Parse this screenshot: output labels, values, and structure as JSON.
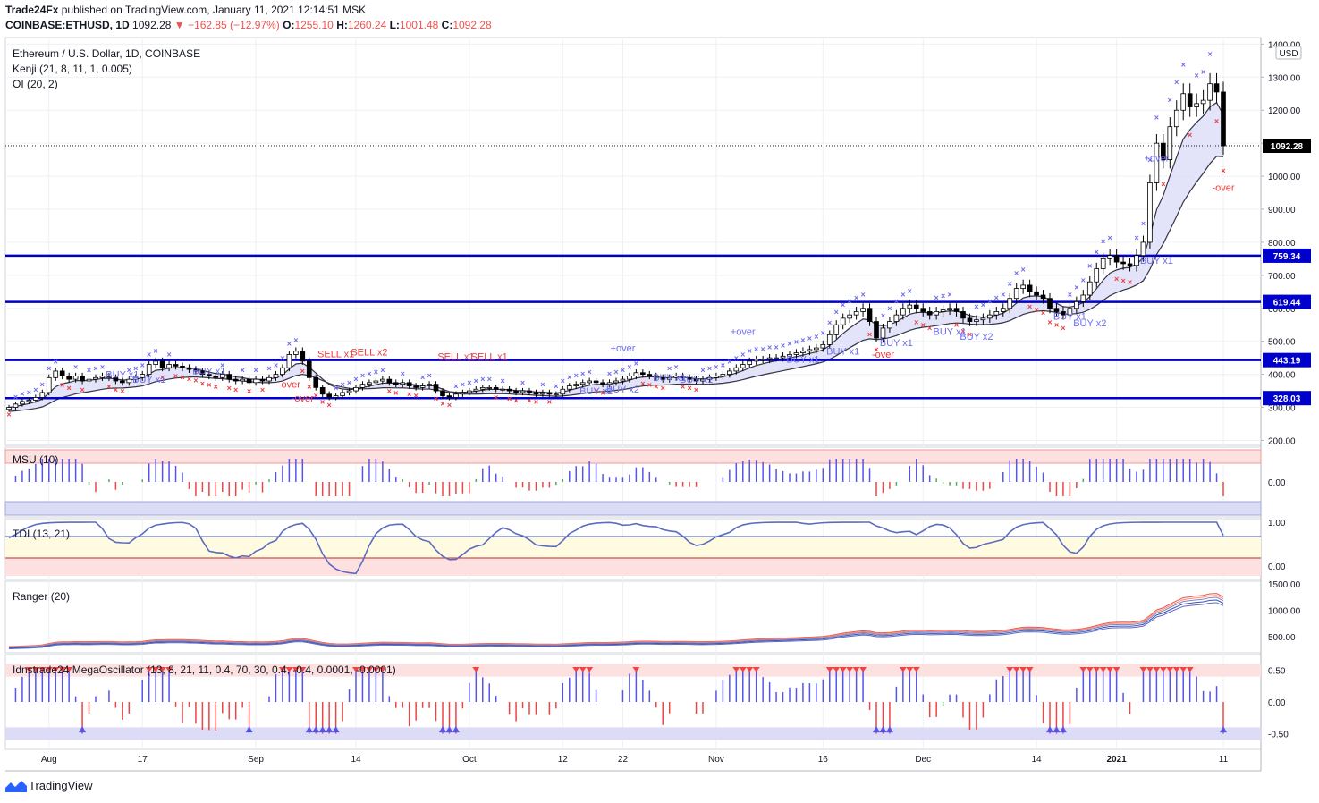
{
  "header": {
    "publisher": "Trade24Fx",
    "published_line": "published on TradingView.com, January 11, 2021 12:14:51 MSK",
    "symbol": "COINBASE:ETHUSD,",
    "timeframe": "1D",
    "last": "1092.28",
    "change": "−162.85 (−12.97%)",
    "o_label": "O:",
    "o": "1255.10",
    "h_label": "H:",
    "h": "1260.24",
    "l_label": "L:",
    "l": "1001.48",
    "c_label": "C:",
    "c": "1092.28"
  },
  "legend": {
    "title": "Ethereum / U.S. Dollar, 1D, COINBASE",
    "kenji": "Kenji (21, 8, 11, 1, 0.005)",
    "oi": "OI (20, 2)",
    "msu": "MSU (10)",
    "tdi": "TDI (13, 21)",
    "ranger": "Ranger (20)",
    "mega": "Idnstrade24 MegaOscillator (13, 8, 21, 11, 0.4, 70, 30, 0.4, -0.4, 0.0001, -0.0001)"
  },
  "colors": {
    "candle_up": "#ffffff",
    "candle_down": "#000000",
    "levels": "#0000cc",
    "buy_marker": "#6c6cf0",
    "sell_marker": "#ef3b3b",
    "band_fill": "#dcdcf7",
    "osc_pos": "#5555ee",
    "osc_neg": "#ef4444",
    "osc_mid": "#4caf50",
    "price_tag": "#000000"
  },
  "chart_data": [
    {
      "type": "candlestick",
      "title": "Ethereum / U.S. Dollar, 1D, COINBASE",
      "x_ticks": [
        "Aug",
        "17",
        "Sep",
        "14",
        "Oct",
        "12",
        "22",
        "Nov",
        "16",
        "Dec",
        "14",
        "2021",
        "11"
      ],
      "y_ticks": [
        200,
        300,
        400,
        500,
        600,
        700,
        800,
        900,
        1000,
        1100,
        1200,
        1300,
        1400
      ],
      "y_tick_labels": [
        "200.00",
        "300.00",
        "400.00",
        "500.00",
        "600.00",
        "700.00",
        "800.00",
        "900.00",
        "1000.00",
        "1100.00",
        "1200.00",
        "1300.00",
        "1400.00"
      ],
      "ylim": [
        185,
        1420
      ],
      "currency": "USD",
      "last_price": 1092.28,
      "last_price_label": "1092.28",
      "levels": [
        759.34,
        619.44,
        443.19,
        328.03
      ],
      "level_labels": [
        "759.34",
        "619.44",
        "443.19",
        "328.03"
      ],
      "closes": [
        300,
        310,
        318,
        322,
        330,
        345,
        390,
        410,
        395,
        385,
        395,
        380,
        385,
        390,
        395,
        390,
        380,
        375,
        385,
        390,
        400,
        430,
        440,
        420,
        430,
        425,
        420,
        415,
        410,
        400,
        395,
        390,
        400,
        385,
        380,
        385,
        375,
        385,
        380,
        390,
        400,
        420,
        460,
        470,
        440,
        390,
        360,
        340,
        330,
        335,
        345,
        350,
        360,
        370,
        375,
        380,
        385,
        375,
        370,
        375,
        365,
        360,
        365,
        370,
        350,
        335,
        330,
        340,
        345,
        350,
        355,
        360,
        360,
        355,
        355,
        350,
        345,
        350,
        345,
        340,
        345,
        340,
        340,
        355,
        365,
        370,
        375,
        380,
        375,
        370,
        375,
        380,
        385,
        395,
        405,
        400,
        395,
        390,
        385,
        390,
        395,
        390,
        385,
        380,
        385,
        390,
        395,
        400,
        410,
        420,
        430,
        440,
        445,
        445,
        450,
        450,
        455,
        460,
        465,
        470,
        475,
        480,
        490,
        520,
        550,
        570,
        580,
        590,
        600,
        560,
        510,
        540,
        560,
        580,
        600,
        610,
        600,
        590,
        580,
        590,
        595,
        600,
        590,
        570,
        560,
        565,
        570,
        580,
        590,
        600,
        630,
        660,
        670,
        650,
        640,
        630,
        600,
        590,
        580,
        600,
        620,
        640,
        680,
        720,
        750,
        760,
        740,
        735,
        730,
        760,
        800,
        980,
        1100,
        1050,
        1150,
        1200,
        1250,
        1210,
        1220,
        1230,
        1280,
        1255,
        1092.28
      ],
      "annotations": [
        {
          "text": "BUY x1",
          "kind": "buy",
          "day": 18,
          "price": 390
        },
        {
          "text": "BUY x1",
          "kind": "buy",
          "day": 23,
          "price": 375
        },
        {
          "text": "BUY x1",
          "kind": "buy",
          "day": 33,
          "price": 400
        },
        {
          "text": "SELL x1",
          "kind": "sell",
          "day": 53,
          "price": 452
        },
        {
          "text": "SELL x2",
          "kind": "sell",
          "day": 58,
          "price": 457
        },
        {
          "text": "SELL x1",
          "kind": "sell",
          "day": 73,
          "price": 443
        },
        {
          "text": "SELL x1",
          "kind": "sell",
          "day": 78,
          "price": 443
        },
        {
          "text": "-over",
          "kind": "sell",
          "day": 46,
          "price": 360
        },
        {
          "text": "-over",
          "kind": "sell",
          "day": 48,
          "price": 318
        },
        {
          "text": "BUY x2",
          "kind": "buy",
          "day": 95,
          "price": 340
        },
        {
          "text": "BUY x2",
          "kind": "buy",
          "day": 100,
          "price": 345
        },
        {
          "text": "+over",
          "kind": "buy",
          "day": 100,
          "price": 470
        },
        {
          "text": "BUY x1",
          "kind": "buy",
          "day": 107,
          "price": 380
        },
        {
          "text": "BUY x1",
          "kind": "buy",
          "day": 111,
          "price": 375
        },
        {
          "text": "+over",
          "kind": "buy",
          "day": 119,
          "price": 520
        },
        {
          "text": "BUY x1",
          "kind": "buy",
          "day": 129,
          "price": 435
        },
        {
          "text": "BUY x1",
          "kind": "buy",
          "day": 135,
          "price": 460
        },
        {
          "text": "BUY x1",
          "kind": "buy",
          "day": 144,
          "price": 485
        },
        {
          "text": "-over",
          "kind": "sell",
          "day": 142,
          "price": 450
        },
        {
          "text": "BUY x1",
          "kind": "buy",
          "day": 153,
          "price": 520
        },
        {
          "text": "BUY x2",
          "kind": "buy",
          "day": 157,
          "price": 505
        },
        {
          "text": "BUY x1",
          "kind": "buy",
          "day": 172,
          "price": 565
        },
        {
          "text": "BUY x2",
          "kind": "buy",
          "day": 175,
          "price": 545
        },
        {
          "text": "BUY x1",
          "kind": "buy",
          "day": 186,
          "price": 735
        },
        {
          "text": "+over",
          "kind": "buy",
          "day": 186,
          "price": 1045
        },
        {
          "text": "-over",
          "kind": "sell",
          "day": 197,
          "price": 955
        }
      ]
    },
    {
      "type": "bar",
      "title": "MSU (10)",
      "y_ticks": [
        0.0
      ],
      "y_tick_labels": [
        "0.00"
      ]
    },
    {
      "type": "line",
      "title": "TDI (13, 21)",
      "y_ticks": [
        1.0,
        0.0
      ],
      "y_tick_labels": [
        "1.00",
        "0.00"
      ]
    },
    {
      "type": "line",
      "title": "Ranger (20)",
      "y_ticks": [
        1500,
        1000,
        500
      ],
      "y_tick_labels": [
        "1500.00",
        "1000.00",
        "500.00"
      ]
    },
    {
      "type": "bar",
      "title": "Idnstrade24 MegaOscillator (13, 8, 21, 11, 0.4, 70, 30, 0.4, -0.4, 0.0001, -0.0001)",
      "y_ticks": [
        0.5,
        0.0,
        -0.5
      ],
      "y_tick_labels": [
        "0.50",
        "0.00",
        "-0.50"
      ]
    }
  ],
  "footer": {
    "brand": "TradingView"
  }
}
